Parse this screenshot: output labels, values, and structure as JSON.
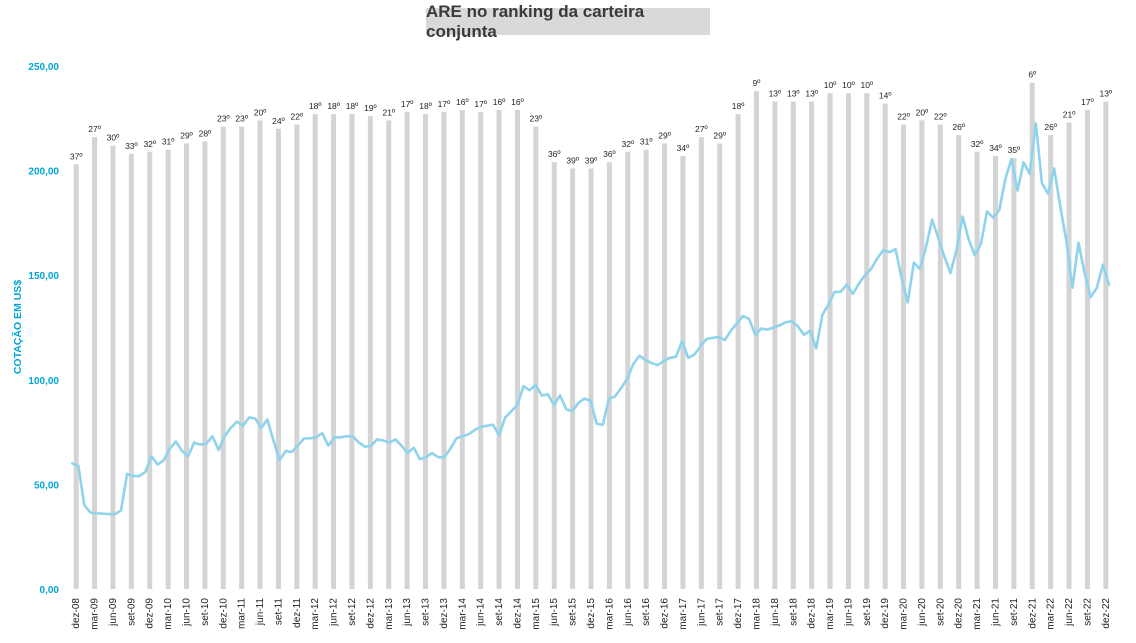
{
  "title": "ARE no ranking da carteira conjunta",
  "chart_data": {
    "type": "line+bar",
    "title": "ARE no ranking da carteira conjunta",
    "ylabel": "COTAÇÃO EM US$",
    "ylim": [
      0,
      250
    ],
    "yticks": [
      "0,00",
      "50,00",
      "100,00",
      "150,00",
      "200,00",
      "250,00"
    ],
    "colors": {
      "bar": "#d4d4d4",
      "line": "#8fd3ec",
      "axis_text": "#00a6d6"
    },
    "xticks": [
      "dez-08",
      "mar-09",
      "jun-09",
      "set-09",
      "dez-09",
      "mar-10",
      "jun-10",
      "set-10",
      "dez-10",
      "mar-11",
      "jun-11",
      "set-11",
      "dez-11",
      "mar-12",
      "jun-12",
      "set-12",
      "dez-12",
      "mar-13",
      "jun-13",
      "set-13",
      "dez-13",
      "mar-14",
      "jun-14",
      "set-14",
      "dez-14",
      "mar-15",
      "jun-15",
      "set-15",
      "dez-15",
      "mar-16",
      "jun-16",
      "set-16",
      "dez-16",
      "mar-17",
      "jun-17",
      "set-17",
      "dez-17",
      "mar-18",
      "jun-18",
      "set-18",
      "dez-18",
      "mar-19",
      "jun-19",
      "set-19",
      "dez-19",
      "mar-20",
      "jun-20",
      "set-20",
      "dez-20",
      "mar-21",
      "jun-21",
      "set-21",
      "dez-21",
      "mar-22",
      "jun-22",
      "set-22",
      "dez-22"
    ],
    "rankings": [
      "37º",
      "27º",
      "30º",
      "33º",
      "32º",
      "31º",
      "29º",
      "28º",
      "23º",
      "23º",
      "20º",
      "24º",
      "22º",
      "18º",
      "18º",
      "18º",
      "19º",
      "21º",
      "17º",
      "18º",
      "17º",
      "16º",
      "17º",
      "16º",
      "16º",
      "23º",
      "36º",
      "39º",
      "39º",
      "36º",
      "32º",
      "31º",
      "29º",
      "34º",
      "27º",
      "29º",
      "18º",
      "9º",
      "13º",
      "13º",
      "13º",
      "10º",
      "10º",
      "10º",
      "14º",
      "22º",
      "20º",
      "22º",
      "26º",
      "32º",
      "34º",
      "35º",
      "6º",
      "26º",
      "21º",
      "17º",
      "13º"
    ],
    "bar_values": [
      203,
      216,
      212,
      208,
      209,
      210,
      213,
      214,
      221,
      221,
      224,
      220,
      222,
      227,
      227,
      227,
      226,
      224,
      228,
      227,
      228,
      229,
      228,
      229,
      229,
      221,
      204,
      201,
      201,
      204,
      209,
      210,
      213,
      207,
      216,
      213,
      227,
      238,
      233,
      233,
      233,
      237,
      237,
      237,
      232,
      222,
      224,
      222,
      217,
      209,
      207,
      206,
      242,
      217,
      223,
      229,
      233
    ],
    "series": [
      {
        "values": [
          60,
          59,
          40,
          36.5,
          36.2,
          36,
          35.8,
          35.8,
          37.5,
          55,
          54,
          54,
          56,
          63.5,
          59.5,
          61.5,
          67,
          70.5,
          66,
          63.5,
          70,
          69,
          69.5,
          73,
          66.5,
          73,
          77,
          80,
          78,
          82,
          81.5,
          77,
          81,
          71,
          61.5,
          66,
          65.5,
          68.5,
          72,
          72,
          72.5,
          74.5,
          68.5,
          72.5,
          72.5,
          73,
          73,
          70,
          68,
          68.5,
          71.5,
          71,
          70,
          71.5,
          68.5,
          65,
          67.5,
          62,
          63,
          65,
          63,
          63,
          67,
          72,
          73,
          74,
          76,
          77.5,
          78,
          78.5,
          73.5,
          82,
          85,
          88,
          97,
          95,
          97.5,
          92.5,
          93,
          88,
          92.5,
          86,
          85,
          89,
          91,
          90,
          79,
          78.5,
          91,
          92,
          96,
          100.5,
          107.5,
          111.5,
          109.5,
          108,
          107,
          109,
          110.5,
          111,
          118.5,
          110.5,
          112,
          116,
          119.5,
          120,
          120.5,
          119,
          123.5,
          127,
          130.5,
          129,
          121.5,
          124.5,
          124,
          125,
          126,
          127.5,
          128,
          125.5,
          121.5,
          123.5,
          115,
          131,
          136,
          142,
          142,
          145.5,
          141,
          146,
          150,
          153,
          158,
          162,
          161,
          162.5,
          148.5,
          137,
          156,
          153,
          163.5,
          176.5,
          168,
          159,
          151,
          162,
          178,
          167,
          159.5,
          165,
          180.5,
          177.5,
          181,
          196,
          205.5,
          190.5,
          204,
          198.5,
          222.5,
          194,
          189,
          201,
          183,
          166.5,
          144,
          165.5,
          151,
          139.5,
          144,
          155,
          145.5
        ]
      }
    ]
  }
}
